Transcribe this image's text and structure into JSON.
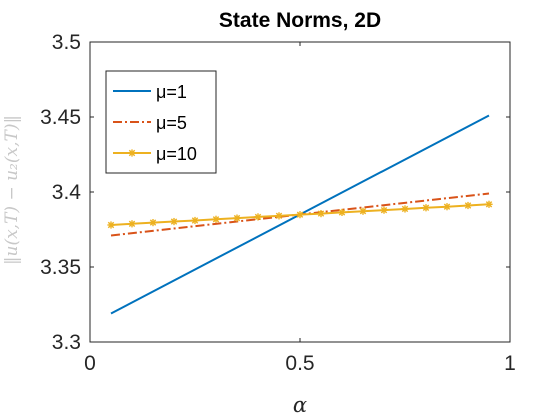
{
  "chart_data": {
    "type": "line",
    "title": "State Norms, 2D",
    "xlabel": "α",
    "ylabel": "‖u(x,T) − u₂(x,T)‖",
    "xlim": [
      0,
      1
    ],
    "ylim": [
      3.3,
      3.5
    ],
    "xticks": [
      0,
      0.5,
      1
    ],
    "xtick_labels": [
      "0",
      "0.5",
      "1"
    ],
    "yticks": [
      3.3,
      3.35,
      3.4,
      3.45,
      3.5
    ],
    "ytick_labels": [
      "3.3",
      "3.35",
      "3.4",
      "3.45",
      "3.5"
    ],
    "grid": false,
    "legend_position": "top-left",
    "series": [
      {
        "name": "μ=1",
        "color": "#0072BD",
        "style": "solid",
        "marker": "none",
        "x": [
          0.05,
          0.95
        ],
        "y": [
          3.319,
          3.451
        ]
      },
      {
        "name": "μ=5",
        "color": "#D95319",
        "style": "dashdot",
        "marker": "none",
        "x": [
          0.05,
          0.95
        ],
        "y": [
          3.371,
          3.399
        ]
      },
      {
        "name": "μ=10",
        "color": "#EDB120",
        "style": "solid",
        "marker": "asterisk",
        "x": [
          0.05,
          0.1,
          0.15,
          0.2,
          0.25,
          0.3,
          0.35,
          0.4,
          0.45,
          0.5,
          0.55,
          0.6,
          0.65,
          0.7,
          0.75,
          0.8,
          0.85,
          0.9,
          0.95
        ],
        "y": [
          3.378,
          3.3788,
          3.3796,
          3.3803,
          3.381,
          3.3818,
          3.3826,
          3.3834,
          3.3841,
          3.3849,
          3.3856,
          3.3864,
          3.3872,
          3.3879,
          3.3887,
          3.3895,
          3.3902,
          3.391,
          3.3918
        ]
      }
    ]
  }
}
